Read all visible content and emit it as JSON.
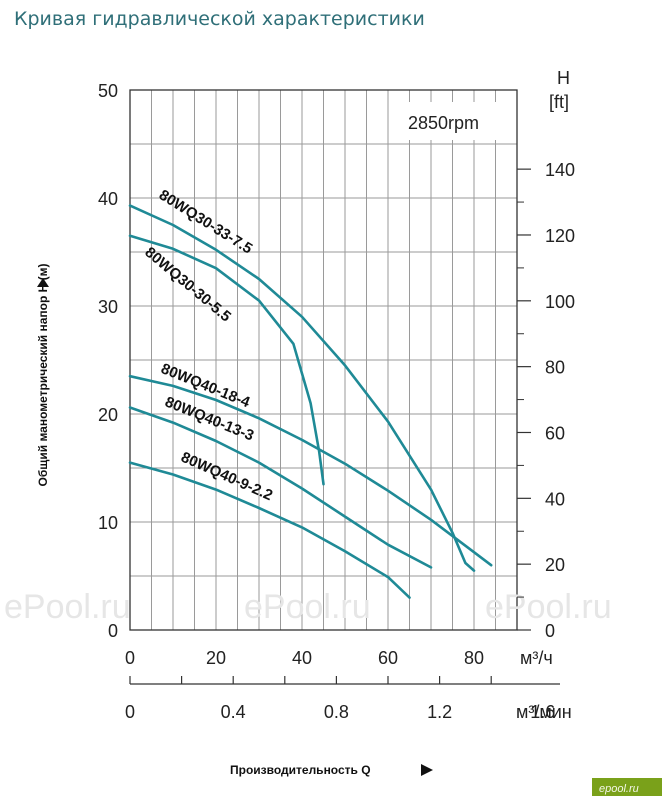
{
  "page": {
    "title": "Кривая гидравлической характеристики"
  },
  "watermarks": [
    "ePool.ru",
    "ePool.ru",
    "ePool.ru"
  ],
  "badge": "epool.ru",
  "chart_data": {
    "type": "line",
    "rpm_label": "2850rpm",
    "xlabel": "Производительность Q",
    "ylabel": "Общий манометрический напор H (м)",
    "x_unit": "м³/ч",
    "x2_unit": "м³/мин",
    "y2_label_top": "H",
    "y2_label_unit": "[ft]",
    "xlim": [
      0,
      90
    ],
    "ylim": [
      0,
      50
    ],
    "x_ticks": [
      0,
      20,
      40,
      60,
      80
    ],
    "x2_ticks": [
      "0",
      "0.4",
      "0.8",
      "1.2",
      "1.6"
    ],
    "y_ticks": [
      0,
      10,
      20,
      30,
      40,
      50
    ],
    "y2_ticks": [
      0,
      20,
      40,
      60,
      80,
      100,
      120,
      140
    ],
    "grid": true,
    "series": [
      {
        "name": "80WQ30-33-7.5",
        "x": [
          0,
          10,
          20,
          30,
          40,
          50,
          60,
          70,
          75,
          78,
          80
        ],
        "y": [
          39.3,
          37.5,
          35.2,
          32.5,
          29,
          24.5,
          19.3,
          13,
          9,
          6.2,
          5.5
        ]
      },
      {
        "name": "80WQ30-30-5.5",
        "x": [
          0,
          10,
          20,
          30,
          38,
          42,
          44,
          45
        ],
        "y": [
          36.5,
          35.3,
          33.5,
          30.5,
          26.5,
          21,
          16.5,
          13.5
        ]
      },
      {
        "name": "80WQ40-18-4",
        "x": [
          0,
          10,
          20,
          30,
          40,
          50,
          60,
          70,
          80,
          84
        ],
        "y": [
          23.5,
          22.6,
          21.3,
          19.6,
          17.6,
          15.4,
          12.9,
          10.2,
          7.2,
          6
        ]
      },
      {
        "name": "80WQ40-13-3",
        "x": [
          0,
          10,
          20,
          30,
          40,
          50,
          60,
          70
        ],
        "y": [
          20.6,
          19.2,
          17.5,
          15.5,
          13.1,
          10.5,
          7.9,
          5.8
        ]
      },
      {
        "name": "80WQ40-9-2.2",
        "x": [
          0,
          10,
          20,
          30,
          40,
          50,
          60,
          65
        ],
        "y": [
          15.5,
          14.4,
          13,
          11.3,
          9.5,
          7.3,
          4.9,
          3
        ]
      }
    ]
  }
}
